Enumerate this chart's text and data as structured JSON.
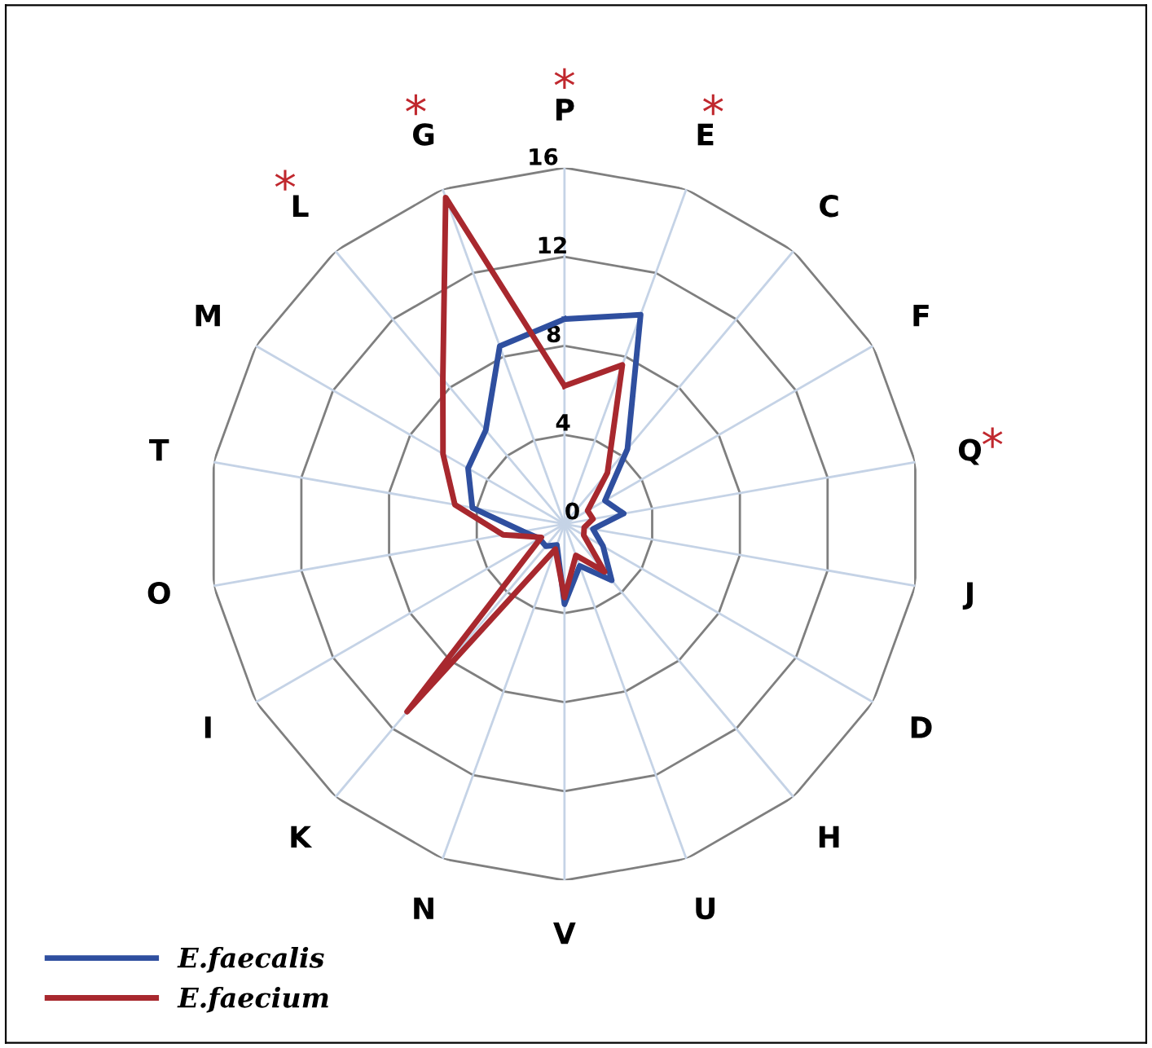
{
  "chart_data": {
    "type": "radar",
    "categories": [
      "P",
      "E",
      "C",
      "F",
      "Q",
      "J",
      "D",
      "H",
      "U",
      "V",
      "N",
      "K",
      "I",
      "O",
      "T",
      "M",
      "L",
      "G"
    ],
    "series": [
      {
        "name": "E.faecalis",
        "color": "#2f4f9f",
        "values": [
          9.2,
          10,
          4.4,
          2.1,
          2.7,
          1.3,
          2,
          3.3,
          2,
          3.6,
          1,
          1.3,
          1.3,
          1.9,
          4.2,
          5,
          5.5,
          8.5
        ]
      },
      {
        "name": "E.faecium",
        "color": "#a8282e",
        "values": [
          6.2,
          7.6,
          3,
          1.2,
          1.3,
          0.9,
          1,
          2.8,
          1.5,
          3.3,
          1.2,
          11,
          1.2,
          2.8,
          5,
          6.3,
          8.5,
          15.6
        ]
      }
    ],
    "ylim": [
      0,
      16
    ],
    "yticks": [
      0,
      4,
      8,
      12,
      16
    ],
    "grid": true,
    "legend": "bottom left",
    "annotations": [
      {
        "text": "*",
        "x": "L"
      },
      {
        "text": "*",
        "x": "G"
      },
      {
        "text": "*",
        "x": "P"
      },
      {
        "text": "*",
        "x": "E"
      },
      {
        "text": "*",
        "x": "Q"
      }
    ]
  }
}
